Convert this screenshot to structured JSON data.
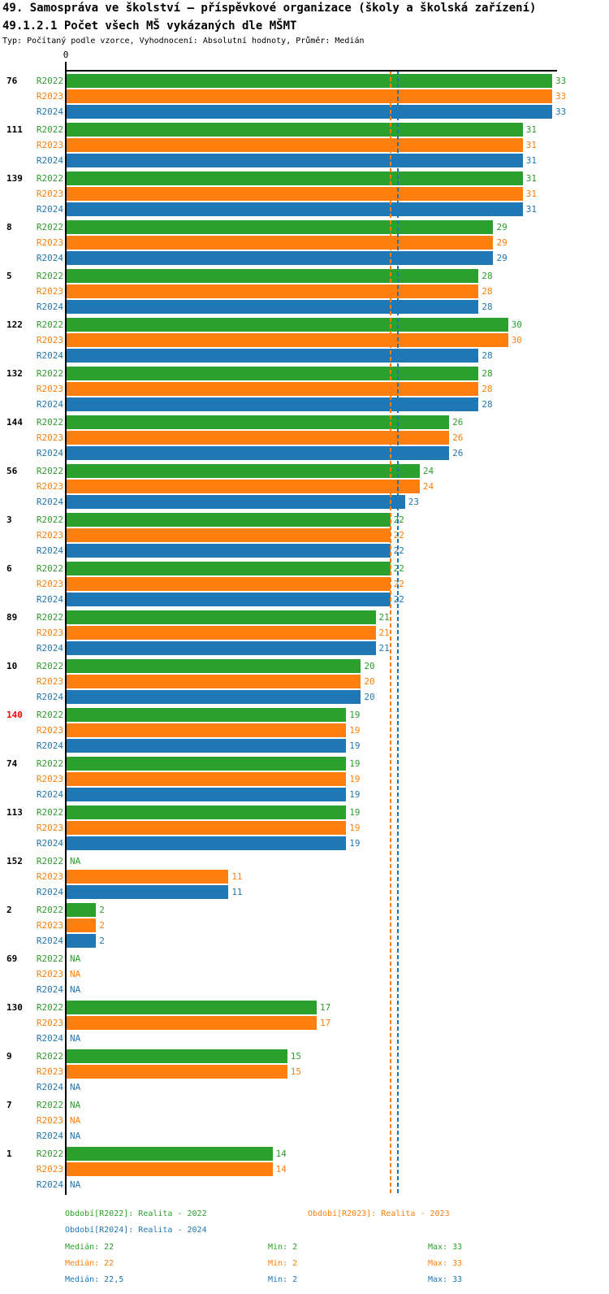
{
  "header": {
    "title": "49. Samospráva ve školství – příspěvkové organizace (školy a školská zařízení)",
    "subtitle": "49.1.2.1 Počet všech MŠ vykázaných dle MŠMT",
    "meta": "Typ: Počítaný podle vzorce, Vyhodnocení: Absolutní hodnoty, Průměr: Medián"
  },
  "colors": {
    "r2022": "#2ca02c",
    "r2023": "#ff7f0e",
    "r2024": "#1f77b4",
    "highlight": "#ff0000",
    "axis": "#000000"
  },
  "chart_data": {
    "type": "bar",
    "orientation": "horizontal",
    "x_axis": {
      "zero_label": "0",
      "min": 0,
      "max": 33
    },
    "na_label": "NA",
    "grid": false,
    "series": [
      {
        "label": "R2022",
        "color": "#2ca02c"
      },
      {
        "label": "R2023",
        "color": "#ff7f0e"
      },
      {
        "label": "R2024",
        "color": "#1f77b4"
      }
    ],
    "median_lines": [
      {
        "series": "R2023",
        "value": 22,
        "color": "#ff7f0e"
      },
      {
        "series": "R2024",
        "value": 22.5,
        "color": "#1f77b4"
      }
    ],
    "groups": [
      {
        "label": "76",
        "values": [
          33,
          33,
          33
        ]
      },
      {
        "label": "111",
        "values": [
          31,
          31,
          31
        ]
      },
      {
        "label": "139",
        "values": [
          31,
          31,
          31
        ]
      },
      {
        "label": "8",
        "values": [
          29,
          29,
          29
        ]
      },
      {
        "label": "5",
        "values": [
          28,
          28,
          28
        ]
      },
      {
        "label": "122",
        "values": [
          30,
          30,
          28
        ]
      },
      {
        "label": "132",
        "values": [
          28,
          28,
          28
        ]
      },
      {
        "label": "144",
        "values": [
          26,
          26,
          26
        ]
      },
      {
        "label": "56",
        "values": [
          24,
          24,
          23
        ]
      },
      {
        "label": "3",
        "values": [
          22,
          22,
          22
        ]
      },
      {
        "label": "6",
        "values": [
          22,
          22,
          22
        ]
      },
      {
        "label": "89",
        "values": [
          21,
          21,
          21
        ]
      },
      {
        "label": "10",
        "values": [
          20,
          20,
          20
        ]
      },
      {
        "label": "140",
        "values": [
          19,
          19,
          19
        ],
        "label_color": "#ff0000"
      },
      {
        "label": "74",
        "values": [
          19,
          19,
          19
        ]
      },
      {
        "label": "113",
        "values": [
          19,
          19,
          19
        ]
      },
      {
        "label": "152",
        "values": [
          null,
          11,
          11
        ]
      },
      {
        "label": "2",
        "values": [
          2,
          2,
          2
        ]
      },
      {
        "label": "69",
        "values": [
          null,
          null,
          null
        ]
      },
      {
        "label": "130",
        "values": [
          17,
          17,
          null
        ]
      },
      {
        "label": "9",
        "values": [
          15,
          15,
          null
        ]
      },
      {
        "label": "7",
        "values": [
          null,
          null,
          null
        ]
      },
      {
        "label": "1",
        "values": [
          14,
          14,
          null
        ]
      }
    ]
  },
  "legend": {
    "r2022": "Období[R2022]: Realita - 2022",
    "r2023": "Období[R2023]: Realita - 2023",
    "r2024": "Období[R2024]: Realita - 2024"
  },
  "stats": [
    {
      "color": "#2ca02c",
      "median": "Medián: 22",
      "min": "Min: 2",
      "max": "Max: 33"
    },
    {
      "color": "#ff7f0e",
      "median": "Medián: 22",
      "min": "Min: 2",
      "max": "Max: 33"
    },
    {
      "color": "#1f77b4",
      "median": "Medián: 22,5",
      "min": "Min: 2",
      "max": "Max: 33"
    }
  ]
}
